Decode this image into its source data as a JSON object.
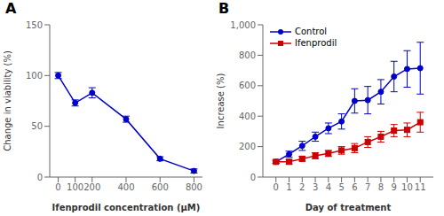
{
  "chart_data": [
    {
      "type": "line",
      "title": "A",
      "xlabel": "Ifenprodil concentration (μM)",
      "ylabel": "Change in viability (%)",
      "x": [
        0,
        100,
        200,
        400,
        600,
        800
      ],
      "xlim": [
        -50,
        850
      ],
      "xticks": [
        0,
        100,
        200,
        400,
        600,
        800
      ],
      "ylim": [
        0,
        150
      ],
      "yticks": [
        0,
        50,
        100,
        150
      ],
      "grid": false,
      "series": [
        {
          "color": "#0000CC",
          "marker": "circle",
          "values": [
            100,
            73,
            83,
            57,
            18,
            6
          ],
          "yerr": [
            3,
            3,
            5,
            3,
            2,
            2
          ]
        }
      ]
    },
    {
      "type": "line",
      "title": "B",
      "xlabel": "Day of treatment",
      "ylabel": "Increase (%)",
      "x": [
        0,
        1,
        2,
        3,
        4,
        5,
        6,
        7,
        8,
        9,
        10,
        11
      ],
      "xlim": [
        -1,
        12
      ],
      "xticks": [
        0,
        1,
        2,
        3,
        4,
        5,
        6,
        7,
        8,
        9,
        10,
        11
      ],
      "ylim": [
        0,
        1000
      ],
      "yticks": [
        0,
        200,
        400,
        600,
        800,
        {
          "value": 1000,
          "label": "1,000"
        }
      ],
      "grid": false,
      "legend": "upper left",
      "series": [
        {
          "name": "Control",
          "color": "#0000CC",
          "marker": "circle",
          "values": [
            100,
            150,
            205,
            265,
            320,
            365,
            500,
            505,
            560,
            660,
            710,
            715
          ],
          "yerr": [
            10,
            20,
            30,
            30,
            35,
            50,
            80,
            90,
            80,
            100,
            120,
            170
          ]
        },
        {
          "name": "Ifenprodil",
          "color": "#CC0000",
          "marker": "square",
          "values": [
            100,
            100,
            120,
            140,
            155,
            175,
            190,
            230,
            265,
            305,
            310,
            360
          ],
          "yerr": [
            10,
            15,
            15,
            20,
            20,
            25,
            30,
            35,
            35,
            40,
            45,
            65
          ]
        }
      ]
    }
  ]
}
